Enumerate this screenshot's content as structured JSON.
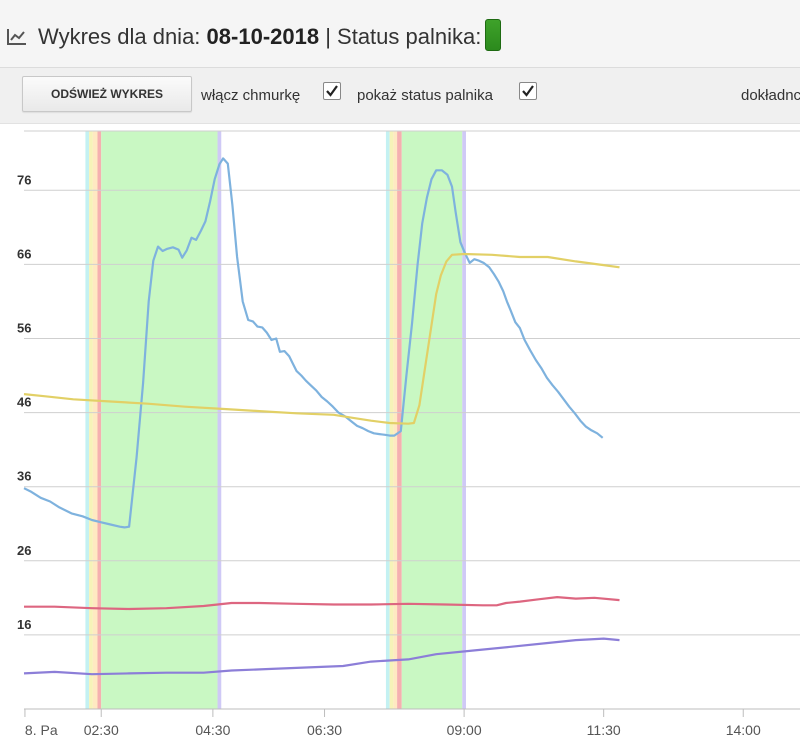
{
  "header": {
    "title_prefix": "Wykres dla dnia: ",
    "date": "08-10-2018",
    "status_label": " | Status palnika:",
    "icon": "line-chart-icon"
  },
  "toolbar": {
    "refresh_label": "ODŚWIEŻ WYKRES",
    "cloud_label": "włącz chmurkę",
    "cloud_checked": true,
    "status_label": "pokaż status palnika",
    "status_checked": true,
    "precision_label": "dokładnc"
  },
  "chart_data": {
    "type": "line",
    "x_unit": "minutes since 00:00 (axis printed as time of day)",
    "xlim": [
      67,
      901
    ],
    "ylim": [
      6,
      84
    ],
    "yticks": [
      16,
      26,
      36,
      46,
      56,
      66,
      76
    ],
    "xticks": [
      {
        "t": 68,
        "label": "8. Pa"
      },
      {
        "t": 150,
        "label": "02:30"
      },
      {
        "t": 270,
        "label": "04:30"
      },
      {
        "t": 390,
        "label": "06:30"
      },
      {
        "t": 540,
        "label": "09:00"
      },
      {
        "t": 690,
        "label": "11:30"
      },
      {
        "t": 840,
        "label": "14:00"
      }
    ],
    "grid": true,
    "series": [
      {
        "color": "#7eb2de",
        "points": [
          [
            67,
            35.8
          ],
          [
            75,
            35.3
          ],
          [
            85,
            34.5
          ],
          [
            95,
            34.0
          ],
          [
            105,
            33.2
          ],
          [
            118,
            32.4
          ],
          [
            130,
            32.0
          ],
          [
            140,
            31.5
          ],
          [
            150,
            31.2
          ],
          [
            160,
            30.9
          ],
          [
            170,
            30.6
          ],
          [
            175,
            30.5
          ],
          [
            180,
            30.6
          ],
          [
            188,
            40
          ],
          [
            195,
            50
          ],
          [
            201,
            61
          ],
          [
            206,
            66.5
          ],
          [
            211,
            68.4
          ],
          [
            216,
            67.8
          ],
          [
            221,
            68.1
          ],
          [
            227,
            68.3
          ],
          [
            233,
            68.0
          ],
          [
            237,
            66.9
          ],
          [
            242,
            67.9
          ],
          [
            247,
            69.6
          ],
          [
            252,
            69.3
          ],
          [
            257,
            70.5
          ],
          [
            262,
            71.8
          ],
          [
            267,
            74.5
          ],
          [
            272,
            77.5
          ],
          [
            277,
            79.5
          ],
          [
            281,
            80.3
          ],
          [
            286,
            79.6
          ],
          [
            291,
            74
          ],
          [
            296,
            67
          ],
          [
            302,
            61
          ],
          [
            308,
            58.5
          ],
          [
            313,
            58.3
          ],
          [
            318,
            57.6
          ],
          [
            323,
            57.5
          ],
          [
            328,
            56.8
          ],
          [
            333,
            55.8
          ],
          [
            338,
            56.0
          ],
          [
            342,
            54.2
          ],
          [
            347,
            54.3
          ],
          [
            352,
            53.6
          ],
          [
            356,
            52.6
          ],
          [
            360,
            51.6
          ],
          [
            365,
            51.0
          ],
          [
            370,
            50.3
          ],
          [
            375,
            49.7
          ],
          [
            381,
            49.0
          ],
          [
            387,
            48.1
          ],
          [
            393,
            47.5
          ],
          [
            399,
            46.8
          ],
          [
            405,
            46.0
          ],
          [
            412,
            45.5
          ],
          [
            419,
            44.8
          ],
          [
            425,
            44.2
          ],
          [
            431,
            43.9
          ],
          [
            437,
            43.5
          ],
          [
            443,
            43.2
          ],
          [
            449,
            43.1
          ],
          [
            455,
            43.0
          ],
          [
            460,
            42.9
          ],
          [
            465,
            42.9
          ],
          [
            472,
            43.5
          ],
          [
            478,
            51
          ],
          [
            484,
            58
          ],
          [
            490,
            66
          ],
          [
            495,
            71.5
          ],
          [
            500,
            75
          ],
          [
            505,
            77.5
          ],
          [
            510,
            78.7
          ],
          [
            516,
            78.7
          ],
          [
            522,
            78.1
          ],
          [
            527,
            76.5
          ],
          [
            531,
            73
          ],
          [
            536,
            69
          ],
          [
            541,
            67.5
          ],
          [
            546,
            66.2
          ],
          [
            551,
            66.7
          ],
          [
            556,
            66.5
          ],
          [
            561,
            66.2
          ],
          [
            567,
            65.6
          ],
          [
            572,
            64.7
          ],
          [
            577,
            63.7
          ],
          [
            582,
            62.4
          ],
          [
            586,
            61.0
          ],
          [
            590,
            59.8
          ],
          [
            595,
            58.2
          ],
          [
            600,
            57.4
          ],
          [
            605,
            55.8
          ],
          [
            611,
            54.4
          ],
          [
            617,
            53.1
          ],
          [
            623,
            52.0
          ],
          [
            629,
            50.7
          ],
          [
            635,
            49.7
          ],
          [
            641,
            48.8
          ],
          [
            647,
            47.8
          ],
          [
            653,
            46.8
          ],
          [
            659,
            45.9
          ],
          [
            665,
            44.9
          ],
          [
            671,
            44.1
          ],
          [
            677,
            43.6
          ],
          [
            683,
            43.2
          ],
          [
            689,
            42.6
          ]
        ]
      },
      {
        "color": "#e2d066",
        "points": [
          [
            67,
            48.5
          ],
          [
            90,
            48.2
          ],
          [
            120,
            47.8
          ],
          [
            160,
            47.5
          ],
          [
            200,
            47.2
          ],
          [
            240,
            46.8
          ],
          [
            280,
            46.5
          ],
          [
            320,
            46.2
          ],
          [
            360,
            45.9
          ],
          [
            400,
            45.7
          ],
          [
            420,
            45.3
          ],
          [
            440,
            44.9
          ],
          [
            460,
            44.6
          ],
          [
            480,
            44.5
          ],
          [
            486,
            44.6
          ],
          [
            492,
            47
          ],
          [
            498,
            52
          ],
          [
            504,
            57
          ],
          [
            510,
            62
          ],
          [
            515,
            64.5
          ],
          [
            521,
            66.4
          ],
          [
            527,
            67.3
          ],
          [
            540,
            67.4
          ],
          [
            570,
            67.3
          ],
          [
            600,
            67.0
          ],
          [
            630,
            67.0
          ],
          [
            660,
            66.4
          ],
          [
            690,
            65.9
          ],
          [
            707,
            65.6
          ]
        ]
      },
      {
        "color": "#dd6680",
        "points": [
          [
            67,
            19.8
          ],
          [
            100,
            19.8
          ],
          [
            140,
            19.6
          ],
          [
            180,
            19.5
          ],
          [
            220,
            19.6
          ],
          [
            260,
            19.9
          ],
          [
            290,
            20.3
          ],
          [
            320,
            20.3
          ],
          [
            360,
            20.2
          ],
          [
            400,
            20.1
          ],
          [
            440,
            20.1
          ],
          [
            480,
            20.2
          ],
          [
            520,
            20.1
          ],
          [
            560,
            20.0
          ],
          [
            575,
            20.0
          ],
          [
            585,
            20.3
          ],
          [
            600,
            20.5
          ],
          [
            620,
            20.8
          ],
          [
            640,
            21.1
          ],
          [
            660,
            20.9
          ],
          [
            680,
            21.0
          ],
          [
            707,
            20.7
          ]
        ]
      },
      {
        "color": "#8c7ed8",
        "points": [
          [
            67,
            10.8
          ],
          [
            100,
            11.0
          ],
          [
            140,
            10.7
          ],
          [
            180,
            10.8
          ],
          [
            220,
            10.9
          ],
          [
            260,
            10.9
          ],
          [
            290,
            11.2
          ],
          [
            330,
            11.4
          ],
          [
            370,
            11.6
          ],
          [
            410,
            11.8
          ],
          [
            440,
            12.4
          ],
          [
            480,
            12.7
          ],
          [
            510,
            13.4
          ],
          [
            550,
            13.9
          ],
          [
            590,
            14.4
          ],
          [
            630,
            14.9
          ],
          [
            660,
            15.3
          ],
          [
            690,
            15.5
          ],
          [
            707,
            15.3
          ]
        ]
      }
    ],
    "bands": [
      {
        "from": 133,
        "to": 137,
        "color": "#c4f1f2"
      },
      {
        "from": 137,
        "to": 141,
        "color": "#f6f3b8"
      },
      {
        "from": 141,
        "to": 146,
        "color": "#ffe9c2"
      },
      {
        "from": 146,
        "to": 150,
        "color": "#f5b0b0"
      },
      {
        "from": 150,
        "to": 275,
        "color": "#c9f8c3"
      },
      {
        "from": 275,
        "to": 279,
        "color": "#cfc9f6"
      },
      {
        "from": 456,
        "to": 460,
        "color": "#c4f1f2"
      },
      {
        "from": 460,
        "to": 464,
        "color": "#f6f3b8"
      },
      {
        "from": 464,
        "to": 468,
        "color": "#ffe9c2"
      },
      {
        "from": 468,
        "to": 473,
        "color": "#f5b0b0"
      },
      {
        "from": 473,
        "to": 538,
        "color": "#c9f8c3"
      },
      {
        "from": 538,
        "to": 542,
        "color": "#cfc9f6"
      }
    ]
  }
}
